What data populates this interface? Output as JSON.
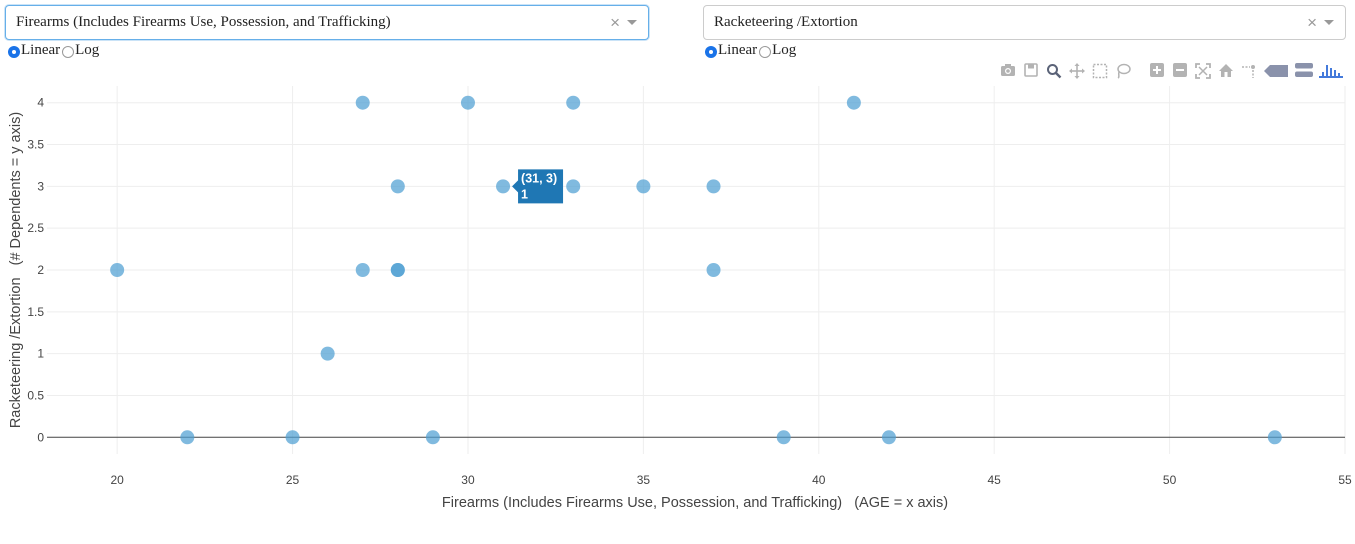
{
  "controls": {
    "left_dropdown": {
      "value": "Firearms (Includes Firearms Use, Possession, and Trafficking)",
      "clear": "×"
    },
    "right_dropdown": {
      "value": "Racketeering /Extortion",
      "clear": "×"
    },
    "left_scale": {
      "linear": "Linear",
      "log": "Log",
      "selected": "Linear"
    },
    "right_scale": {
      "linear": "Linear",
      "log": "Log",
      "selected": "Linear"
    }
  },
  "modebar": {
    "icons": [
      "camera-icon",
      "save-icon",
      "zoom-icon",
      "pan-icon",
      "box-select-icon",
      "lasso-icon",
      "zoom-in-icon",
      "zoom-out-icon",
      "autoscale-icon",
      "home-icon",
      "spike-lines-icon",
      "hover-closest-icon",
      "hover-compare-icon",
      "plotly-logo-icon"
    ]
  },
  "colors": {
    "marker": "#4f9fd3",
    "hover_box": "#1f77b4",
    "grid": "#eeeeee",
    "zero_line": "#444444"
  },
  "chart_data": {
    "type": "scatter",
    "xlabel": "Firearms (Includes Firearms Use, Possession, and Trafficking)   (AGE = x axis)",
    "ylabel": "Racketeering /Extortion   (# Dependents = y axis)",
    "xlim": [
      18,
      55
    ],
    "ylim": [
      -0.2,
      4.2
    ],
    "x_ticks": [
      "20",
      "25",
      "30",
      "35",
      "40",
      "45",
      "50",
      "55"
    ],
    "y_ticks": [
      "0",
      "0.5",
      "1",
      "1.5",
      "2",
      "2.5",
      "3",
      "3.5",
      "4"
    ],
    "grid": true,
    "points": [
      {
        "x": 27,
        "y": 4
      },
      {
        "x": 30,
        "y": 4
      },
      {
        "x": 33,
        "y": 4
      },
      {
        "x": 41,
        "y": 4
      },
      {
        "x": 28,
        "y": 3
      },
      {
        "x": 31,
        "y": 3
      },
      {
        "x": 33,
        "y": 3
      },
      {
        "x": 35,
        "y": 3
      },
      {
        "x": 37,
        "y": 3
      },
      {
        "x": 20,
        "y": 2
      },
      {
        "x": 27,
        "y": 2
      },
      {
        "x": 28,
        "y": 2
      },
      {
        "x": 28,
        "y": 2
      },
      {
        "x": 37,
        "y": 2
      },
      {
        "x": 26,
        "y": 1
      },
      {
        "x": 22,
        "y": 0
      },
      {
        "x": 25,
        "y": 0
      },
      {
        "x": 29,
        "y": 0
      },
      {
        "x": 39,
        "y": 0
      },
      {
        "x": 42,
        "y": 0
      },
      {
        "x": 53,
        "y": 0
      }
    ],
    "hover": {
      "x": 31,
      "y": 3,
      "line1": "(31, 3)",
      "line2": "1"
    }
  }
}
